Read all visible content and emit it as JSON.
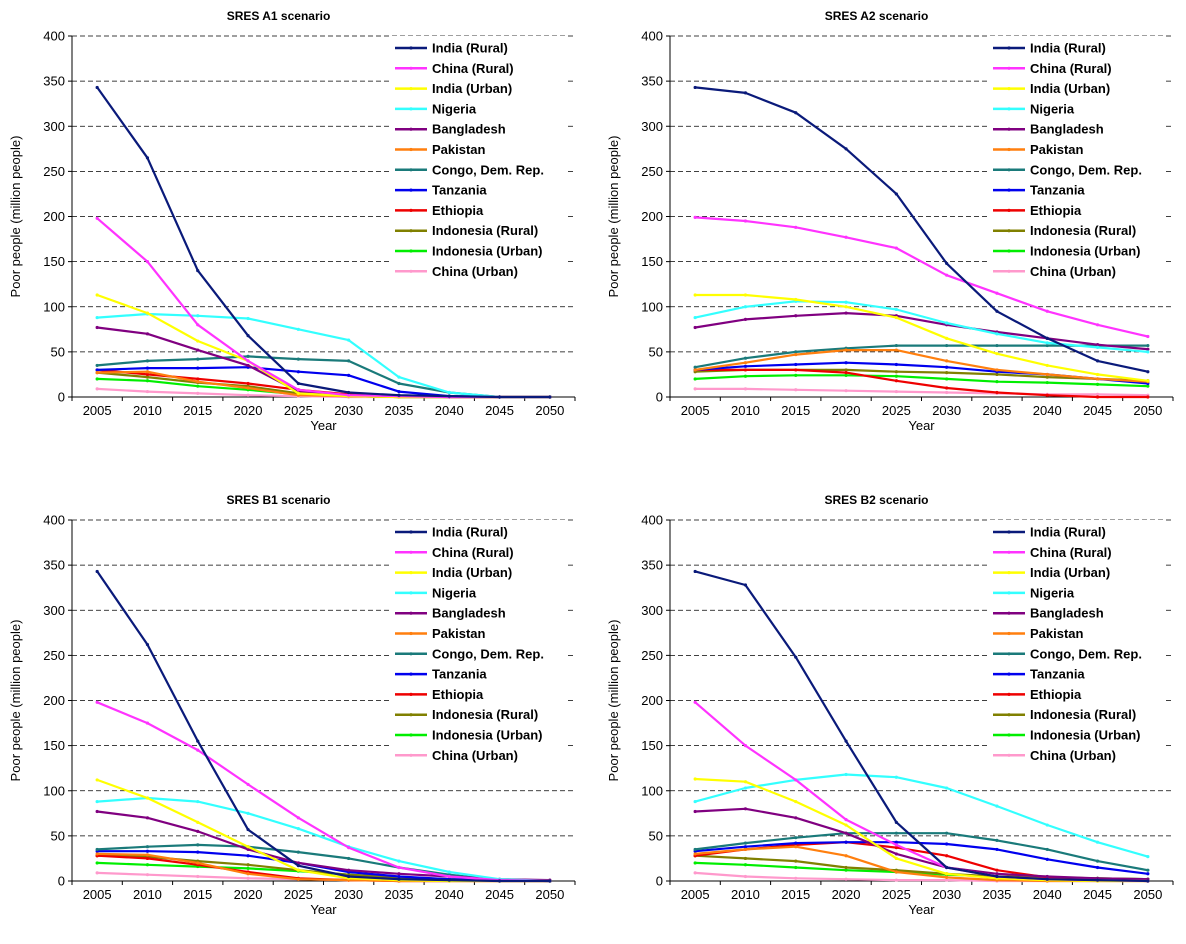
{
  "series_legend": [
    {
      "name": "India (Rural)",
      "color": "#0a1a7a"
    },
    {
      "name": "China (Rural)",
      "color": "#ff33ff"
    },
    {
      "name": "India (Urban)",
      "color": "#ffff00"
    },
    {
      "name": "Nigeria",
      "color": "#33ffff"
    },
    {
      "name": "Bangladesh",
      "color": "#800080"
    },
    {
      "name": "Pakistan",
      "color": "#ff7f0e"
    },
    {
      "name": "Congo, Dem. Rep.",
      "color": "#1a7a7a"
    },
    {
      "name": "Tanzania",
      "color": "#0000ee"
    },
    {
      "name": "Ethiopia",
      "color": "#ee0000"
    },
    {
      "name": "Indonesia (Rural)",
      "color": "#808000"
    },
    {
      "name": "Indonesia (Urban)",
      "color": "#00ee00"
    },
    {
      "name": "China (Urban)",
      "color": "#ff99cc"
    }
  ],
  "chart_data": [
    {
      "type": "line",
      "title": "SRES A1 scenario",
      "xlabel": "Year",
      "ylabel": "Poor people (million people)",
      "x": [
        2005,
        2010,
        2015,
        2020,
        2025,
        2030,
        2035,
        2040,
        2045,
        2050
      ],
      "ylim": [
        0,
        400
      ],
      "yticks": [
        0,
        50,
        100,
        150,
        200,
        250,
        300,
        350,
        400
      ],
      "grid": "horizontal dashed",
      "legend": "top-right",
      "series": [
        {
          "name": "India (Rural)",
          "values": [
            343,
            265,
            140,
            68,
            15,
            5,
            2,
            1,
            0,
            0
          ]
        },
        {
          "name": "China (Rural)",
          "values": [
            198,
            150,
            80,
            40,
            8,
            2,
            1,
            0,
            0,
            0
          ]
        },
        {
          "name": "India (Urban)",
          "values": [
            113,
            93,
            62,
            40,
            4,
            1,
            0,
            0,
            0,
            0
          ]
        },
        {
          "name": "Nigeria",
          "values": [
            88,
            92,
            90,
            87,
            75,
            63,
            22,
            5,
            0,
            0
          ]
        },
        {
          "name": "Bangladesh",
          "values": [
            77,
            70,
            52,
            35,
            6,
            2,
            1,
            0,
            0,
            0
          ]
        },
        {
          "name": "Pakistan",
          "values": [
            27,
            28,
            17,
            10,
            2,
            1,
            0,
            0,
            0,
            0
          ]
        },
        {
          "name": "Congo, Dem. Rep.",
          "values": [
            35,
            40,
            42,
            45,
            42,
            40,
            15,
            5,
            0,
            0
          ]
        },
        {
          "name": "Tanzania",
          "values": [
            30,
            32,
            32,
            33,
            28,
            24,
            6,
            1,
            0,
            0
          ]
        },
        {
          "name": "Ethiopia",
          "values": [
            30,
            25,
            20,
            15,
            8,
            3,
            1,
            0,
            0,
            0
          ]
        },
        {
          "name": "Indonesia (Rural)",
          "values": [
            27,
            22,
            16,
            12,
            4,
            1,
            0,
            0,
            0,
            0
          ]
        },
        {
          "name": "Indonesia (Urban)",
          "values": [
            20,
            18,
            12,
            8,
            3,
            1,
            0,
            0,
            0,
            0
          ]
        },
        {
          "name": "China (Urban)",
          "values": [
            9,
            6,
            4,
            2,
            1,
            0,
            0,
            0,
            0,
            0
          ]
        }
      ]
    },
    {
      "type": "line",
      "title": "SRES A2 scenario",
      "xlabel": "Year",
      "ylabel": "Poor people (million people)",
      "x": [
        2005,
        2010,
        2015,
        2020,
        2025,
        2030,
        2035,
        2040,
        2045,
        2050
      ],
      "ylim": [
        0,
        400
      ],
      "yticks": [
        0,
        50,
        100,
        150,
        200,
        250,
        300,
        350,
        400
      ],
      "grid": "horizontal dashed",
      "legend": "top-right",
      "series": [
        {
          "name": "India (Rural)",
          "values": [
            343,
            337,
            315,
            275,
            225,
            148,
            95,
            65,
            40,
            28
          ]
        },
        {
          "name": "China (Rural)",
          "values": [
            199,
            195,
            188,
            177,
            165,
            135,
            115,
            95,
            80,
            67
          ]
        },
        {
          "name": "India (Urban)",
          "values": [
            113,
            113,
            108,
            100,
            88,
            65,
            48,
            35,
            25,
            18
          ]
        },
        {
          "name": "Nigeria",
          "values": [
            88,
            100,
            106,
            105,
            97,
            82,
            70,
            60,
            55,
            50
          ]
        },
        {
          "name": "Bangladesh",
          "values": [
            77,
            86,
            90,
            93,
            90,
            80,
            72,
            65,
            58,
            53
          ]
        },
        {
          "name": "Pakistan",
          "values": [
            30,
            38,
            47,
            52,
            52,
            40,
            30,
            25,
            20,
            17
          ]
        },
        {
          "name": "Congo, Dem. Rep.",
          "values": [
            33,
            43,
            50,
            54,
            57,
            57,
            57,
            57,
            57,
            57
          ]
        },
        {
          "name": "Tanzania",
          "values": [
            30,
            34,
            36,
            38,
            36,
            33,
            28,
            25,
            20,
            15
          ]
        },
        {
          "name": "Ethiopia",
          "values": [
            30,
            30,
            30,
            27,
            18,
            10,
            5,
            2,
            0,
            0
          ]
        },
        {
          "name": "Indonesia (Rural)",
          "values": [
            28,
            30,
            30,
            30,
            28,
            27,
            25,
            22,
            20,
            18
          ]
        },
        {
          "name": "Indonesia (Urban)",
          "values": [
            20,
            23,
            24,
            24,
            23,
            20,
            17,
            16,
            14,
            12
          ]
        },
        {
          "name": "China (Urban)",
          "values": [
            9,
            9,
            8,
            7,
            6,
            5,
            4,
            3,
            3,
            2
          ]
        }
      ]
    },
    {
      "type": "line",
      "title": "SRES B1 scenario",
      "xlabel": "Year",
      "ylabel": "Poor people (million people)",
      "x": [
        2005,
        2010,
        2015,
        2020,
        2025,
        2030,
        2035,
        2040,
        2045,
        2050
      ],
      "ylim": [
        0,
        400
      ],
      "yticks": [
        0,
        50,
        100,
        150,
        200,
        250,
        300,
        350,
        400
      ],
      "grid": "horizontal dashed",
      "legend": "top-right",
      "series": [
        {
          "name": "India (Rural)",
          "values": [
            343,
            262,
            155,
            57,
            17,
            5,
            2,
            1,
            0,
            0
          ]
        },
        {
          "name": "China (Rural)",
          "values": [
            198,
            175,
            145,
            107,
            70,
            37,
            15,
            5,
            1,
            0
          ]
        },
        {
          "name": "India (Urban)",
          "values": [
            112,
            92,
            65,
            38,
            12,
            3,
            1,
            0,
            0,
            0
          ]
        },
        {
          "name": "Nigeria",
          "values": [
            88,
            92,
            88,
            75,
            58,
            38,
            22,
            10,
            2,
            0
          ]
        },
        {
          "name": "Bangladesh",
          "values": [
            77,
            70,
            55,
            35,
            20,
            12,
            8,
            5,
            2,
            1
          ]
        },
        {
          "name": "Pakistan",
          "values": [
            30,
            29,
            20,
            8,
            2,
            1,
            0,
            0,
            0,
            0
          ]
        },
        {
          "name": "Congo, Dem. Rep.",
          "values": [
            35,
            38,
            40,
            38,
            32,
            25,
            15,
            7,
            1,
            0
          ]
        },
        {
          "name": "Tanzania",
          "values": [
            33,
            33,
            32,
            28,
            20,
            10,
            5,
            2,
            1,
            0
          ]
        },
        {
          "name": "Ethiopia",
          "values": [
            28,
            25,
            18,
            10,
            3,
            1,
            0,
            0,
            0,
            0
          ]
        },
        {
          "name": "Indonesia (Rural)",
          "values": [
            28,
            27,
            22,
            18,
            12,
            7,
            4,
            2,
            1,
            0
          ]
        },
        {
          "name": "Indonesia (Urban)",
          "values": [
            20,
            18,
            16,
            14,
            11,
            7,
            4,
            2,
            1,
            0
          ]
        },
        {
          "name": "China (Urban)",
          "values": [
            9,
            7,
            5,
            3,
            2,
            1,
            0,
            0,
            0,
            0
          ]
        }
      ]
    },
    {
      "type": "line",
      "title": "SRES B2 scenario",
      "xlabel": "Year",
      "ylabel": "Poor people (million people)",
      "x": [
        2005,
        2010,
        2015,
        2020,
        2025,
        2030,
        2035,
        2040,
        2045,
        2050
      ],
      "ylim": [
        0,
        400
      ],
      "yticks": [
        0,
        50,
        100,
        150,
        200,
        250,
        300,
        350,
        400
      ],
      "grid": "horizontal dashed",
      "legend": "top-right",
      "series": [
        {
          "name": "India (Rural)",
          "values": [
            343,
            328,
            248,
            155,
            65,
            15,
            5,
            2,
            1,
            0
          ]
        },
        {
          "name": "China (Rural)",
          "values": [
            198,
            150,
            112,
            68,
            40,
            15,
            5,
            2,
            1,
            0
          ]
        },
        {
          "name": "India (Urban)",
          "values": [
            113,
            110,
            88,
            62,
            25,
            8,
            3,
            1,
            0,
            0
          ]
        },
        {
          "name": "Nigeria",
          "values": [
            88,
            103,
            112,
            118,
            115,
            103,
            83,
            62,
            43,
            27
          ]
        },
        {
          "name": "Bangladesh",
          "values": [
            77,
            80,
            70,
            53,
            30,
            15,
            8,
            5,
            3,
            2
          ]
        },
        {
          "name": "Pakistan",
          "values": [
            30,
            35,
            38,
            28,
            10,
            4,
            1,
            0,
            0,
            0
          ]
        },
        {
          "name": "Congo, Dem. Rep.",
          "values": [
            35,
            42,
            48,
            53,
            53,
            53,
            45,
            35,
            22,
            12
          ]
        },
        {
          "name": "Tanzania",
          "values": [
            33,
            38,
            42,
            43,
            43,
            41,
            35,
            24,
            15,
            8
          ]
        },
        {
          "name": "Ethiopia",
          "values": [
            28,
            35,
            40,
            43,
            37,
            28,
            12,
            4,
            1,
            0
          ]
        },
        {
          "name": "Indonesia (Rural)",
          "values": [
            28,
            25,
            22,
            15,
            12,
            8,
            5,
            4,
            3,
            2
          ]
        },
        {
          "name": "Indonesia (Urban)",
          "values": [
            20,
            18,
            15,
            12,
            10,
            7,
            5,
            4,
            3,
            2
          ]
        },
        {
          "name": "China (Urban)",
          "values": [
            9,
            5,
            3,
            2,
            1,
            1,
            0,
            0,
            0,
            0
          ]
        }
      ]
    }
  ]
}
